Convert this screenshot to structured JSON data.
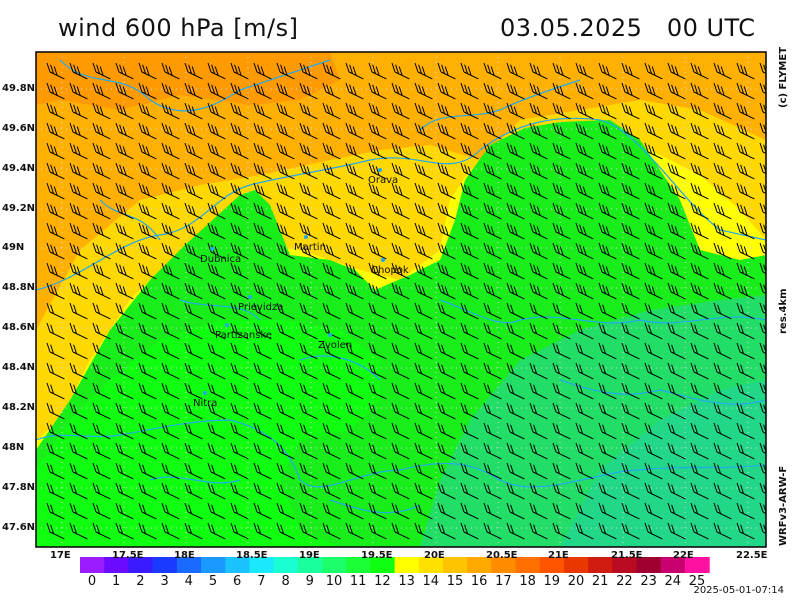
{
  "header": {
    "title": "wind 600 hPa [m/s]",
    "date": "03.05.2025",
    "time": "00 UTC"
  },
  "side_labels": {
    "copyright": "(c) FLYMET",
    "resolution": "res.4km",
    "model": "WRFv3-ARW-F"
  },
  "footer": {
    "timestamp": "2025-05-01-07:14"
  },
  "map": {
    "lat_labels": [
      "49.8N",
      "49.6N",
      "49.4N",
      "49.2N",
      "49N",
      "48.8N",
      "48.6N",
      "48.4N",
      "48.2N",
      "48N",
      "47.8N",
      "47.6N"
    ],
    "lon_labels": [
      "17E",
      "17.5E",
      "18E",
      "18.5E",
      "19E",
      "19.5E",
      "20E",
      "20.5E",
      "21E",
      "21.5E",
      "22E",
      "22.5E"
    ],
    "cities": [
      {
        "name": "Orava"
      },
      {
        "name": "Dubnica"
      },
      {
        "name": "Martin"
      },
      {
        "name": "Chopok"
      },
      {
        "name": "Prievidza"
      },
      {
        "name": "Partizanske"
      },
      {
        "name": "Zvolen"
      },
      {
        "name": "Nitra"
      }
    ]
  },
  "colorbar": {
    "labels": [
      "0",
      "1",
      "2",
      "3",
      "4",
      "5",
      "6",
      "7",
      "8",
      "9",
      "10",
      "11",
      "12",
      "13",
      "14",
      "15",
      "16",
      "17",
      "18",
      "19",
      "20",
      "21",
      "22",
      "23",
      "24",
      "25"
    ],
    "colors": [
      "#9b1dff",
      "#6a0aff",
      "#3a1aff",
      "#1a3aff",
      "#1a6aff",
      "#1a9aff",
      "#1ac2ff",
      "#1ae8ff",
      "#1affd2",
      "#1aff9e",
      "#1aff6a",
      "#1aff36",
      "#10ff10",
      "#ffff00",
      "#ffe000",
      "#ffc400",
      "#ffa800",
      "#ff8c00",
      "#ff7000",
      "#ff5400",
      "#e83800",
      "#d01c10",
      "#b80a20",
      "#a00030",
      "#c80070",
      "#ff10a0"
    ]
  }
}
